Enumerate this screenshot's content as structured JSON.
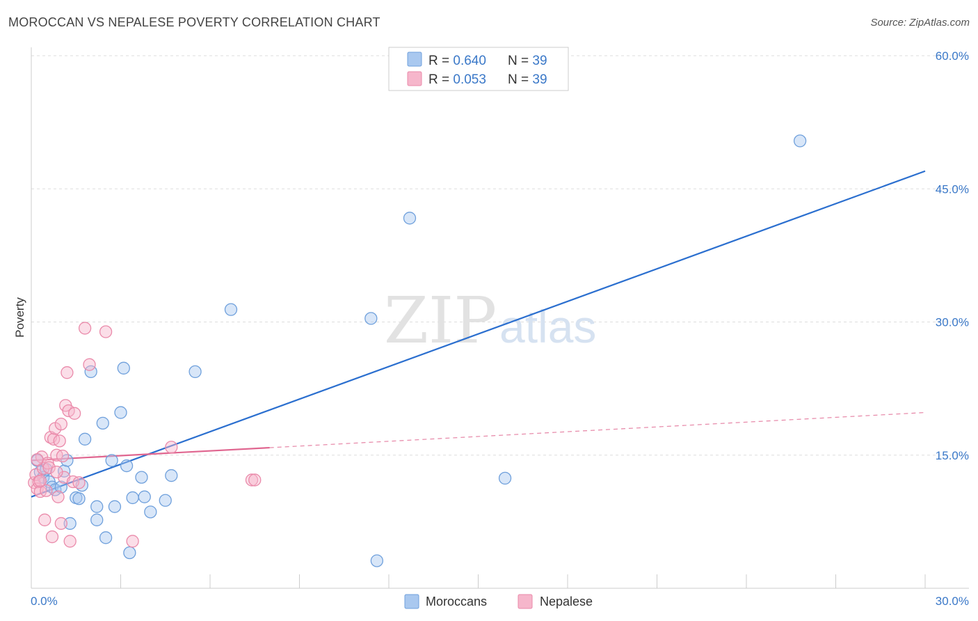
{
  "title": "MOROCCAN VS NEPALESE POVERTY CORRELATION CHART",
  "source": "Source: ZipAtlas.com",
  "watermark": {
    "part1": "ZIP",
    "part2": "atlas"
  },
  "colors": {
    "moroccans_fill": "#a9c8ef",
    "moroccans_stroke": "#6fa0dc",
    "moroccans_line": "#2b6fcf",
    "nepalese_fill": "#f6b6cb",
    "nepalese_stroke": "#ea8aaa",
    "nepalese_line": "#e06690",
    "grid": "#dddddd",
    "tick_text": "#3a78c8"
  },
  "legend": {
    "rows": [
      {
        "r_label": "R = ",
        "r_value": "0.640",
        "n_label": "N = ",
        "n_value": "39"
      },
      {
        "r_label": "R = ",
        "r_value": "0.053",
        "n_label": "N = ",
        "n_value": "39"
      }
    ]
  },
  "chart_data": {
    "type": "scatter",
    "title": "MOROCCAN VS NEPALESE POVERTY CORRELATION CHART",
    "xlabel": "",
    "ylabel": "Poverty",
    "xlim": [
      0,
      30
    ],
    "ylim": [
      0,
      60
    ],
    "x_tick_labels": {
      "min": "0.0%",
      "max": "30.0%"
    },
    "y_ticks": [
      {
        "value": 15,
        "label": "15.0%"
      },
      {
        "value": 30,
        "label": "30.0%"
      },
      {
        "value": 45,
        "label": "45.0%"
      },
      {
        "value": 60,
        "label": "60.0%"
      }
    ],
    "grid": true,
    "legend_position": "bottom-center",
    "series": [
      {
        "name": "Moroccans",
        "r": 0.64,
        "n": 39,
        "trend": {
          "x": [
            0,
            30
          ],
          "y": [
            10.3,
            47.0
          ],
          "dashed_from": null
        },
        "points": [
          [
            0.2,
            14.4
          ],
          [
            0.3,
            13.1
          ],
          [
            0.4,
            12.5
          ],
          [
            0.5,
            13.4
          ],
          [
            0.6,
            12.0
          ],
          [
            0.7,
            11.4
          ],
          [
            0.8,
            11.1
          ],
          [
            1.0,
            11.4
          ],
          [
            1.1,
            13.2
          ],
          [
            1.2,
            14.4
          ],
          [
            1.3,
            7.3
          ],
          [
            1.5,
            10.2
          ],
          [
            1.6,
            10.1
          ],
          [
            1.7,
            11.6
          ],
          [
            1.8,
            16.8
          ],
          [
            2.0,
            24.4
          ],
          [
            2.2,
            9.2
          ],
          [
            2.2,
            7.7
          ],
          [
            2.4,
            18.6
          ],
          [
            2.5,
            5.7
          ],
          [
            2.7,
            14.4
          ],
          [
            2.8,
            9.2
          ],
          [
            3.0,
            19.8
          ],
          [
            3.1,
            24.8
          ],
          [
            3.2,
            13.8
          ],
          [
            3.3,
            4.0
          ],
          [
            3.4,
            10.2
          ],
          [
            3.7,
            12.5
          ],
          [
            3.8,
            10.3
          ],
          [
            4.0,
            8.6
          ],
          [
            4.5,
            9.9
          ],
          [
            4.7,
            12.7
          ],
          [
            5.5,
            24.4
          ],
          [
            6.7,
            31.4
          ],
          [
            11.4,
            30.4
          ],
          [
            11.6,
            3.1
          ],
          [
            12.7,
            41.7
          ],
          [
            15.9,
            12.4
          ],
          [
            25.8,
            50.4
          ]
        ]
      },
      {
        "name": "Nepalese",
        "r": 0.053,
        "n": 39,
        "trend": {
          "x": [
            0,
            30
          ],
          "y": [
            14.4,
            19.8
          ],
          "dashed_from": 8.0
        },
        "points": [
          [
            0.1,
            11.9
          ],
          [
            0.15,
            12.8
          ],
          [
            0.2,
            11.2
          ],
          [
            0.25,
            12.0
          ],
          [
            0.3,
            10.9
          ],
          [
            0.35,
            14.8
          ],
          [
            0.4,
            13.5
          ],
          [
            0.5,
            11.0
          ],
          [
            0.55,
            14.1
          ],
          [
            0.6,
            13.6
          ],
          [
            0.65,
            17.0
          ],
          [
            0.7,
            5.8
          ],
          [
            0.75,
            16.8
          ],
          [
            0.8,
            18.0
          ],
          [
            0.85,
            15.0
          ],
          [
            0.9,
            10.3
          ],
          [
            0.95,
            16.6
          ],
          [
            1.0,
            18.5
          ],
          [
            1.1,
            12.5
          ],
          [
            1.15,
            20.6
          ],
          [
            1.2,
            24.3
          ],
          [
            1.25,
            20.0
          ],
          [
            1.3,
            5.3
          ],
          [
            1.4,
            12.0
          ],
          [
            1.45,
            19.7
          ],
          [
            1.6,
            11.9
          ],
          [
            1.8,
            29.3
          ],
          [
            1.95,
            25.2
          ],
          [
            2.5,
            28.9
          ],
          [
            3.4,
            5.3
          ],
          [
            4.7,
            15.9
          ],
          [
            7.4,
            12.2
          ],
          [
            7.5,
            12.2
          ],
          [
            0.45,
            7.7
          ],
          [
            0.85,
            13.1
          ],
          [
            1.05,
            14.9
          ],
          [
            0.2,
            14.5
          ],
          [
            1.0,
            7.3
          ],
          [
            0.3,
            12.1
          ]
        ]
      }
    ]
  },
  "bottom_legend": [
    {
      "label": "Moroccans"
    },
    {
      "label": "Nepalese"
    }
  ]
}
